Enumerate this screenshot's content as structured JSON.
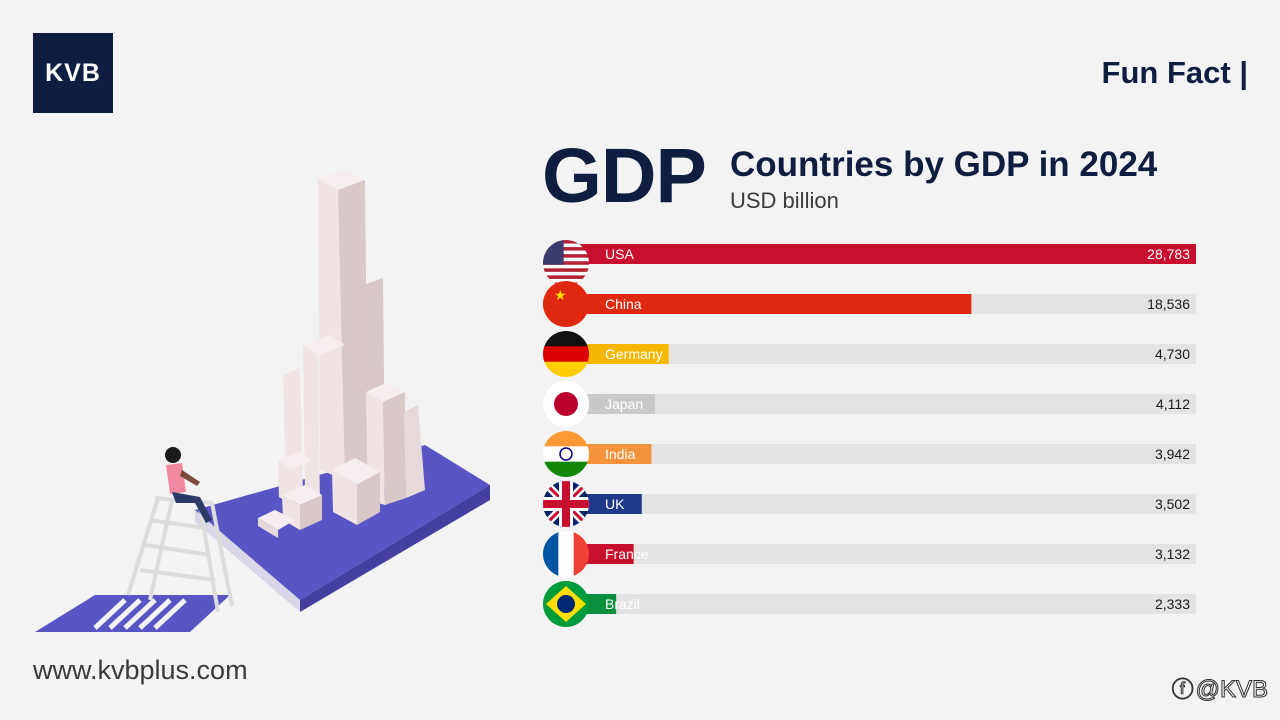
{
  "brand": {
    "logo_text": "KVB",
    "website": "www.kvbplus.com",
    "social_handle": "@KVB",
    "social_icon": "facebook-icon"
  },
  "header": {
    "label": "Fun Fact |"
  },
  "headline": {
    "big": "GDP",
    "title": "Countries by GDP in 2024",
    "unit": "USD billion"
  },
  "chart_data": {
    "type": "bar",
    "orientation": "horizontal",
    "categories": [
      "USA",
      "China",
      "Germany",
      "Japan",
      "India",
      "UK",
      "France",
      "Brazil"
    ],
    "values": [
      28783,
      18536,
      4730,
      4112,
      3942,
      3502,
      3132,
      2333
    ],
    "value_labels": [
      "28,783",
      "18,536",
      "4,730",
      "4,112",
      "3,942",
      "3,502",
      "3,132",
      "2,333"
    ],
    "bar_colors": [
      "#c8102e",
      "#de2910",
      "#f5b700",
      "#c9c9c9",
      "#f4933b",
      "#1f3a8a",
      "#c8102e",
      "#0a8f3c"
    ],
    "title": "Countries by GDP in 2024",
    "unit": "USD billion",
    "xlim": [
      0,
      28783
    ],
    "grid": false,
    "legend": "none",
    "track_color": "#e3e3e3"
  },
  "colors": {
    "navy": "#0f1e40",
    "background": "#f3f3f3",
    "illustration_base": "#5a55c4"
  }
}
